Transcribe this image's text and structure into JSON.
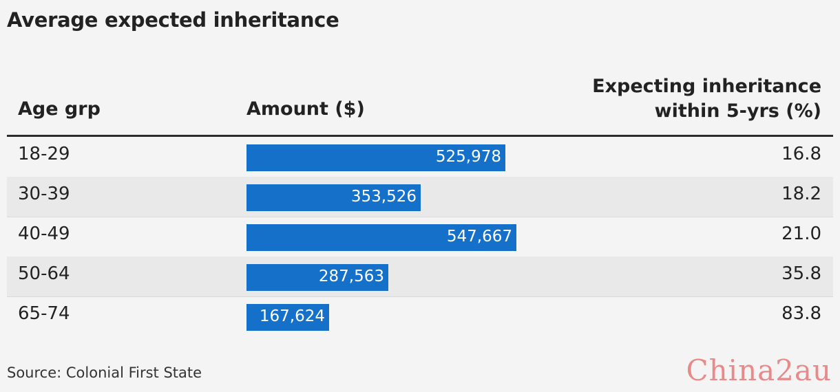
{
  "title": "Average expected inheritance",
  "headers": {
    "age": "Age grp",
    "amount": "Amount ($)",
    "pct_line1": "Expecting inheritance",
    "pct_line2": "within 5-yrs (%)"
  },
  "rows": [
    {
      "age": "18-29",
      "amount_label": "525,978",
      "pct": "16.8"
    },
    {
      "age": "30-39",
      "amount_label": "353,526",
      "pct": "18.2"
    },
    {
      "age": "40-49",
      "amount_label": "547,667",
      "pct": "21.0"
    },
    {
      "age": "50-64",
      "amount_label": "287,563",
      "pct": "35.8"
    },
    {
      "age": "65-74",
      "amount_label": "167,624",
      "pct": "83.8"
    }
  ],
  "source": "Source: Colonial First State",
  "watermark": "China2au",
  "colors": {
    "bar": "#1470c8",
    "background": "#f4f4f4",
    "alt_row": "#e9e9e9"
  },
  "chart_data": {
    "type": "table",
    "title": "Average expected inheritance",
    "columns": [
      "Age grp",
      "Amount ($)",
      "Expecting inheritance within 5-yrs (%)"
    ],
    "categories": [
      "18-29",
      "30-39",
      "40-49",
      "50-64",
      "65-74"
    ],
    "series": [
      {
        "name": "Amount ($)",
        "values": [
          525978,
          353526,
          547667,
          287563,
          167624
        ]
      },
      {
        "name": "Expecting inheritance within 5-yrs (%)",
        "values": [
          16.8,
          18.2,
          21.0,
          35.8,
          83.8
        ]
      }
    ]
  }
}
